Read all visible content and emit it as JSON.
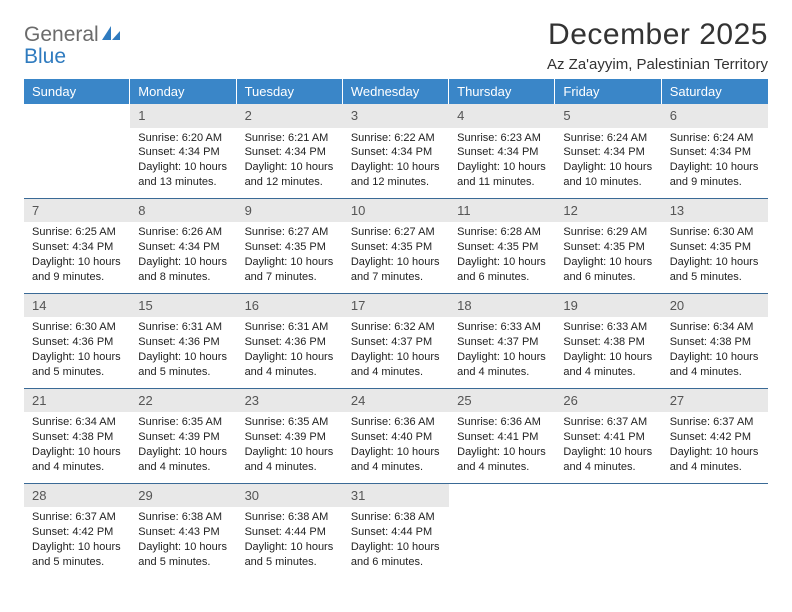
{
  "brand": {
    "word1": "General",
    "word2": "Blue",
    "logo_fill": "#2f7bbf"
  },
  "title": {
    "month": "December 2025",
    "location": "Az Za'ayyim, Palestinian Territory"
  },
  "colors": {
    "header_bg": "#3a86c8",
    "header_fg": "#ffffff",
    "daynum_bg": "#e8e8e8",
    "rule": "#3a6a96",
    "page_bg": "#ffffff",
    "text": "#333333"
  },
  "weekdays": [
    "Sunday",
    "Monday",
    "Tuesday",
    "Wednesday",
    "Thursday",
    "Friday",
    "Saturday"
  ],
  "weeks": [
    [
      {
        "day": "",
        "sunrise": "",
        "sunset": "",
        "daylight": ""
      },
      {
        "day": "1",
        "sunrise": "Sunrise: 6:20 AM",
        "sunset": "Sunset: 4:34 PM",
        "daylight": "Daylight: 10 hours and 13 minutes."
      },
      {
        "day": "2",
        "sunrise": "Sunrise: 6:21 AM",
        "sunset": "Sunset: 4:34 PM",
        "daylight": "Daylight: 10 hours and 12 minutes."
      },
      {
        "day": "3",
        "sunrise": "Sunrise: 6:22 AM",
        "sunset": "Sunset: 4:34 PM",
        "daylight": "Daylight: 10 hours and 12 minutes."
      },
      {
        "day": "4",
        "sunrise": "Sunrise: 6:23 AM",
        "sunset": "Sunset: 4:34 PM",
        "daylight": "Daylight: 10 hours and 11 minutes."
      },
      {
        "day": "5",
        "sunrise": "Sunrise: 6:24 AM",
        "sunset": "Sunset: 4:34 PM",
        "daylight": "Daylight: 10 hours and 10 minutes."
      },
      {
        "day": "6",
        "sunrise": "Sunrise: 6:24 AM",
        "sunset": "Sunset: 4:34 PM",
        "daylight": "Daylight: 10 hours and 9 minutes."
      }
    ],
    [
      {
        "day": "7",
        "sunrise": "Sunrise: 6:25 AM",
        "sunset": "Sunset: 4:34 PM",
        "daylight": "Daylight: 10 hours and 9 minutes."
      },
      {
        "day": "8",
        "sunrise": "Sunrise: 6:26 AM",
        "sunset": "Sunset: 4:34 PM",
        "daylight": "Daylight: 10 hours and 8 minutes."
      },
      {
        "day": "9",
        "sunrise": "Sunrise: 6:27 AM",
        "sunset": "Sunset: 4:35 PM",
        "daylight": "Daylight: 10 hours and 7 minutes."
      },
      {
        "day": "10",
        "sunrise": "Sunrise: 6:27 AM",
        "sunset": "Sunset: 4:35 PM",
        "daylight": "Daylight: 10 hours and 7 minutes."
      },
      {
        "day": "11",
        "sunrise": "Sunrise: 6:28 AM",
        "sunset": "Sunset: 4:35 PM",
        "daylight": "Daylight: 10 hours and 6 minutes."
      },
      {
        "day": "12",
        "sunrise": "Sunrise: 6:29 AM",
        "sunset": "Sunset: 4:35 PM",
        "daylight": "Daylight: 10 hours and 6 minutes."
      },
      {
        "day": "13",
        "sunrise": "Sunrise: 6:30 AM",
        "sunset": "Sunset: 4:35 PM",
        "daylight": "Daylight: 10 hours and 5 minutes."
      }
    ],
    [
      {
        "day": "14",
        "sunrise": "Sunrise: 6:30 AM",
        "sunset": "Sunset: 4:36 PM",
        "daylight": "Daylight: 10 hours and 5 minutes."
      },
      {
        "day": "15",
        "sunrise": "Sunrise: 6:31 AM",
        "sunset": "Sunset: 4:36 PM",
        "daylight": "Daylight: 10 hours and 5 minutes."
      },
      {
        "day": "16",
        "sunrise": "Sunrise: 6:31 AM",
        "sunset": "Sunset: 4:36 PM",
        "daylight": "Daylight: 10 hours and 4 minutes."
      },
      {
        "day": "17",
        "sunrise": "Sunrise: 6:32 AM",
        "sunset": "Sunset: 4:37 PM",
        "daylight": "Daylight: 10 hours and 4 minutes."
      },
      {
        "day": "18",
        "sunrise": "Sunrise: 6:33 AM",
        "sunset": "Sunset: 4:37 PM",
        "daylight": "Daylight: 10 hours and 4 minutes."
      },
      {
        "day": "19",
        "sunrise": "Sunrise: 6:33 AM",
        "sunset": "Sunset: 4:38 PM",
        "daylight": "Daylight: 10 hours and 4 minutes."
      },
      {
        "day": "20",
        "sunrise": "Sunrise: 6:34 AM",
        "sunset": "Sunset: 4:38 PM",
        "daylight": "Daylight: 10 hours and 4 minutes."
      }
    ],
    [
      {
        "day": "21",
        "sunrise": "Sunrise: 6:34 AM",
        "sunset": "Sunset: 4:38 PM",
        "daylight": "Daylight: 10 hours and 4 minutes."
      },
      {
        "day": "22",
        "sunrise": "Sunrise: 6:35 AM",
        "sunset": "Sunset: 4:39 PM",
        "daylight": "Daylight: 10 hours and 4 minutes."
      },
      {
        "day": "23",
        "sunrise": "Sunrise: 6:35 AM",
        "sunset": "Sunset: 4:39 PM",
        "daylight": "Daylight: 10 hours and 4 minutes."
      },
      {
        "day": "24",
        "sunrise": "Sunrise: 6:36 AM",
        "sunset": "Sunset: 4:40 PM",
        "daylight": "Daylight: 10 hours and 4 minutes."
      },
      {
        "day": "25",
        "sunrise": "Sunrise: 6:36 AM",
        "sunset": "Sunset: 4:41 PM",
        "daylight": "Daylight: 10 hours and 4 minutes."
      },
      {
        "day": "26",
        "sunrise": "Sunrise: 6:37 AM",
        "sunset": "Sunset: 4:41 PM",
        "daylight": "Daylight: 10 hours and 4 minutes."
      },
      {
        "day": "27",
        "sunrise": "Sunrise: 6:37 AM",
        "sunset": "Sunset: 4:42 PM",
        "daylight": "Daylight: 10 hours and 4 minutes."
      }
    ],
    [
      {
        "day": "28",
        "sunrise": "Sunrise: 6:37 AM",
        "sunset": "Sunset: 4:42 PM",
        "daylight": "Daylight: 10 hours and 5 minutes."
      },
      {
        "day": "29",
        "sunrise": "Sunrise: 6:38 AM",
        "sunset": "Sunset: 4:43 PM",
        "daylight": "Daylight: 10 hours and 5 minutes."
      },
      {
        "day": "30",
        "sunrise": "Sunrise: 6:38 AM",
        "sunset": "Sunset: 4:44 PM",
        "daylight": "Daylight: 10 hours and 5 minutes."
      },
      {
        "day": "31",
        "sunrise": "Sunrise: 6:38 AM",
        "sunset": "Sunset: 4:44 PM",
        "daylight": "Daylight: 10 hours and 6 minutes."
      },
      {
        "day": "",
        "sunrise": "",
        "sunset": "",
        "daylight": ""
      },
      {
        "day": "",
        "sunrise": "",
        "sunset": "",
        "daylight": ""
      },
      {
        "day": "",
        "sunrise": "",
        "sunset": "",
        "daylight": ""
      }
    ]
  ]
}
